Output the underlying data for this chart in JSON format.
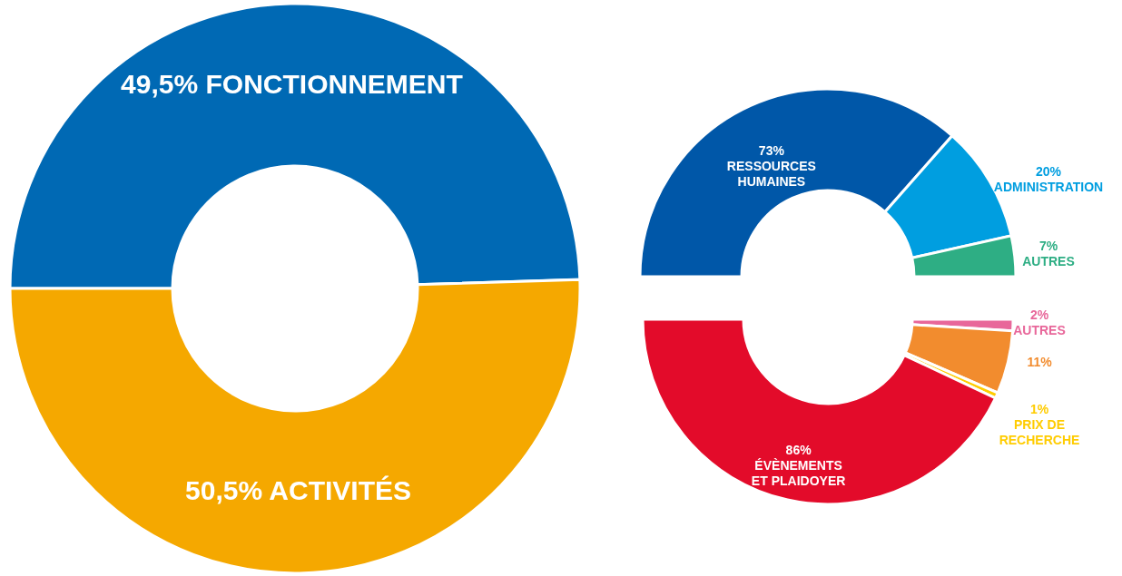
{
  "chart_data": [
    {
      "type": "donut",
      "categories": [
        "FONCTIONNEMENT",
        "ACTIVITÉS"
      ],
      "values": [
        49.5,
        50.5
      ],
      "value_labels": [
        "49,5%",
        "50,5%"
      ],
      "colors": [
        "#0069b4",
        "#f5a800"
      ]
    },
    {
      "type": "donut",
      "categories": [
        "RESSOURCES HUMAINES",
        "ADMINISTRATION",
        "AUTRES"
      ],
      "values": [
        73,
        20,
        7
      ],
      "value_labels": [
        "73%",
        "20%",
        "7%"
      ],
      "colors": [
        "#0057a8",
        "#009ee0",
        "#2eae84"
      ]
    },
    {
      "type": "donut",
      "categories": [
        "AUTRES",
        null,
        "PRIX DE RECHERCHE",
        "ÉVÈNEMENTS ET PLAIDOYER"
      ],
      "values": [
        2,
        11,
        1,
        86
      ],
      "value_labels": [
        "2%",
        "11%",
        "1%",
        "86%"
      ],
      "colors": [
        "#e8679a",
        "#f28c2e",
        "#ffcc00",
        "#e30b2a"
      ]
    }
  ]
}
